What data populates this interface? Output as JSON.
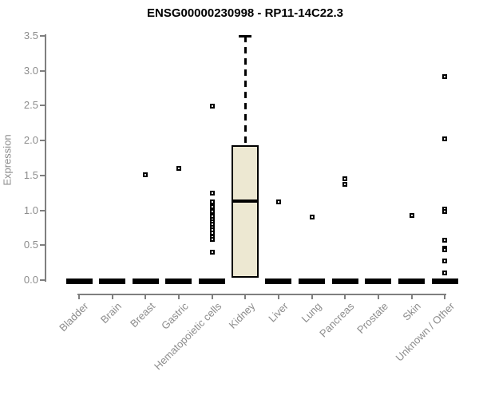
{
  "chart_data": {
    "type": "boxplot",
    "title": "ENSG00000230998 - RP11-14C22.3",
    "xlabel": "",
    "ylabel": "Expression",
    "ylim": [
      0.0,
      3.5
    ],
    "yticks": [
      0.0,
      0.5,
      1.0,
      1.5,
      2.0,
      2.5,
      3.0,
      3.5
    ],
    "ytick_labels": [
      "0.0",
      "0.5",
      "1.0",
      "1.5",
      "2.0",
      "2.5",
      "3.0",
      "3.5"
    ],
    "grid": false,
    "legend": "none",
    "categories": [
      "Bladder",
      "Brain",
      "Breast",
      "Gastric",
      "Hematopoietic cells",
      "Kidney",
      "Liver",
      "Lung",
      "Pancreas",
      "Prostate",
      "Skin",
      "Unknown / Other"
    ],
    "boxes": [
      {
        "category": "Bladder",
        "q1": 0,
        "median": 0,
        "q3": 0,
        "whisker_low": 0,
        "whisker_high": 0,
        "outliers": []
      },
      {
        "category": "Brain",
        "q1": 0,
        "median": 0,
        "q3": 0,
        "whisker_low": 0,
        "whisker_high": 0,
        "outliers": []
      },
      {
        "category": "Breast",
        "q1": 0,
        "median": 0,
        "q3": 0,
        "whisker_low": 0,
        "whisker_high": 0,
        "outliers": [
          1.51
        ]
      },
      {
        "category": "Gastric",
        "q1": 0,
        "median": 0,
        "q3": 0,
        "whisker_low": 0,
        "whisker_high": 0,
        "outliers": [
          1.6
        ]
      },
      {
        "category": "Hematopoietic cells",
        "q1": 0,
        "median": 0,
        "q3": 0,
        "whisker_low": 0,
        "whisker_high": 0,
        "outliers": [
          2.49,
          1.25,
          1.12,
          1.08,
          1.05,
          1.01,
          0.98,
          0.94,
          0.91,
          0.87,
          0.84,
          0.8,
          0.76,
          0.72,
          0.68,
          0.62,
          0.58,
          0.4
        ]
      },
      {
        "category": "Kidney",
        "q1": 0.03,
        "median": 1.13,
        "q3": 1.93,
        "whisker_low": 0.0,
        "whisker_high": 3.5,
        "outliers": []
      },
      {
        "category": "Liver",
        "q1": 0,
        "median": 0,
        "q3": 0,
        "whisker_low": 0,
        "whisker_high": 0,
        "outliers": [
          1.12
        ]
      },
      {
        "category": "Lung",
        "q1": 0,
        "median": 0,
        "q3": 0,
        "whisker_low": 0,
        "whisker_high": 0,
        "outliers": [
          0.9
        ]
      },
      {
        "category": "Pancreas",
        "q1": 0,
        "median": 0,
        "q3": 0,
        "whisker_low": 0,
        "whisker_high": 0,
        "outliers": [
          1.45,
          1.37
        ]
      },
      {
        "category": "Prostate",
        "q1": 0,
        "median": 0,
        "q3": 0,
        "whisker_low": 0,
        "whisker_high": 0,
        "outliers": []
      },
      {
        "category": "Skin",
        "q1": 0,
        "median": 0,
        "q3": 0,
        "whisker_low": 0,
        "whisker_high": 0,
        "outliers": [
          0.93
        ]
      },
      {
        "category": "Unknown / Other",
        "q1": 0,
        "median": 0,
        "q3": 0,
        "whisker_low": 0,
        "whisker_high": 0,
        "outliers": [
          2.92,
          2.03,
          1.02,
          0.98,
          0.57,
          0.46,
          0.43,
          0.28,
          0.1
        ]
      }
    ]
  },
  "colors": {
    "box_fill": "#ede8d2",
    "box_border": "#000000",
    "median": "#000000",
    "outlier": "#000000",
    "axis": "#7f7f7f",
    "tick_label": "#8c8c8c",
    "title": "#000000",
    "background": "#ffffff"
  }
}
